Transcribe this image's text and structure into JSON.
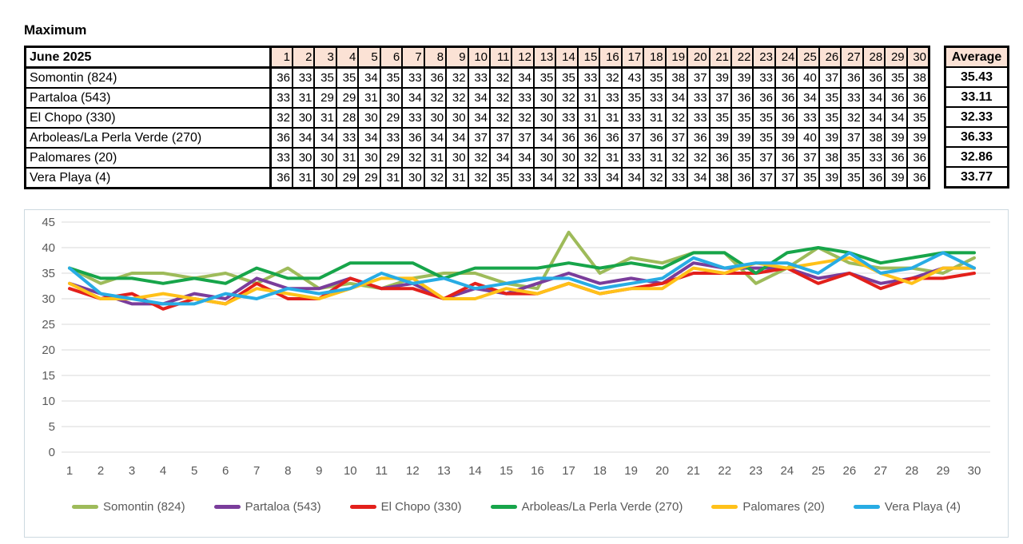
{
  "title": "Maximum",
  "table": {
    "month_label": "June 2025",
    "average_label": "Average",
    "header_bg": "#FBE2D5",
    "days": [
      1,
      2,
      3,
      4,
      5,
      6,
      7,
      8,
      9,
      10,
      11,
      12,
      13,
      14,
      15,
      16,
      17,
      18,
      19,
      20,
      21,
      22,
      23,
      24,
      25,
      26,
      27,
      28,
      29,
      30
    ],
    "rows": [
      {
        "label": "Somontin (824)",
        "values": [
          36,
          33,
          35,
          35,
          34,
          35,
          33,
          36,
          32,
          33,
          32,
          34,
          35,
          35,
          33,
          32,
          43,
          35,
          38,
          37,
          39,
          39,
          33,
          36,
          40,
          37,
          36,
          36,
          35,
          38
        ],
        "average": "35.43"
      },
      {
        "label": "Partaloa (543)",
        "values": [
          33,
          31,
          29,
          29,
          31,
          30,
          34,
          32,
          32,
          34,
          32,
          33,
          30,
          32,
          31,
          33,
          35,
          33,
          34,
          33,
          37,
          36,
          36,
          36,
          34,
          35,
          33,
          34,
          36,
          36
        ],
        "average": "33.11"
      },
      {
        "label": "El Chopo (330)",
        "values": [
          32,
          30,
          31,
          28,
          30,
          29,
          33,
          30,
          30,
          34,
          32,
          32,
          30,
          33,
          31,
          31,
          33,
          31,
          32,
          33,
          35,
          35,
          35,
          36,
          33,
          35,
          32,
          34,
          34,
          35
        ],
        "average": "32.33"
      },
      {
        "label": "Arboleas/La Perla Verde (270)",
        "values": [
          36,
          34,
          34,
          33,
          34,
          33,
          36,
          34,
          34,
          37,
          37,
          37,
          34,
          36,
          36,
          36,
          37,
          36,
          37,
          36,
          39,
          39,
          35,
          39,
          40,
          39,
          37,
          38,
          39,
          39
        ],
        "average": "36.33"
      },
      {
        "label": "Palomares (20)",
        "values": [
          33,
          30,
          30,
          31,
          30,
          29,
          32,
          31,
          30,
          32,
          34,
          34,
          30,
          30,
          32,
          31,
          33,
          31,
          32,
          32,
          36,
          35,
          37,
          36,
          37,
          38,
          35,
          33,
          36,
          36
        ],
        "average": "32.86"
      },
      {
        "label": "Vera Playa (4)",
        "values": [
          36,
          31,
          30,
          29,
          29,
          31,
          30,
          32,
          31,
          32,
          35,
          33,
          34,
          32,
          33,
          34,
          34,
          32,
          33,
          34,
          38,
          36,
          37,
          37,
          35,
          39,
          35,
          36,
          39,
          36
        ],
        "average": "33.77"
      }
    ]
  },
  "chart_data": {
    "type": "line",
    "x": [
      1,
      2,
      3,
      4,
      5,
      6,
      7,
      8,
      9,
      10,
      11,
      12,
      13,
      14,
      15,
      16,
      17,
      18,
      19,
      20,
      21,
      22,
      23,
      24,
      25,
      26,
      27,
      28,
      29,
      30
    ],
    "series": [
      {
        "name": "Somontin (824)",
        "color": "#9EBB5A",
        "values": [
          36,
          33,
          35,
          35,
          34,
          35,
          33,
          36,
          32,
          33,
          32,
          34,
          35,
          35,
          33,
          32,
          43,
          35,
          38,
          37,
          39,
          39,
          33,
          36,
          40,
          37,
          36,
          36,
          35,
          38
        ]
      },
      {
        "name": "Partaloa (543)",
        "color": "#7A3D9B",
        "values": [
          33,
          31,
          29,
          29,
          31,
          30,
          34,
          32,
          32,
          34,
          32,
          33,
          30,
          32,
          31,
          33,
          35,
          33,
          34,
          33,
          37,
          36,
          36,
          36,
          34,
          35,
          33,
          34,
          36,
          36
        ]
      },
      {
        "name": "El Chopo (330)",
        "color": "#E3201B",
        "values": [
          32,
          30,
          31,
          28,
          30,
          29,
          33,
          30,
          30,
          34,
          32,
          32,
          30,
          33,
          31,
          31,
          33,
          31,
          32,
          33,
          35,
          35,
          35,
          36,
          33,
          35,
          32,
          34,
          34,
          35
        ]
      },
      {
        "name": "Arboleas/La Perla Verde (270)",
        "color": "#17A54A",
        "values": [
          36,
          34,
          34,
          33,
          34,
          33,
          36,
          34,
          34,
          37,
          37,
          37,
          34,
          36,
          36,
          36,
          37,
          36,
          37,
          36,
          39,
          39,
          35,
          39,
          40,
          39,
          37,
          38,
          39,
          39
        ]
      },
      {
        "name": "Palomares (20)",
        "color": "#FFC119",
        "values": [
          33,
          30,
          30,
          31,
          30,
          29,
          32,
          31,
          30,
          32,
          34,
          34,
          30,
          30,
          32,
          31,
          33,
          31,
          32,
          32,
          36,
          35,
          37,
          36,
          37,
          38,
          35,
          33,
          36,
          36
        ]
      },
      {
        "name": "Vera Playa (4)",
        "color": "#28ACE4",
        "values": [
          36,
          31,
          30,
          29,
          29,
          31,
          30,
          32,
          31,
          32,
          35,
          33,
          34,
          32,
          33,
          34,
          34,
          32,
          33,
          34,
          38,
          36,
          37,
          37,
          35,
          39,
          35,
          36,
          39,
          36
        ]
      }
    ],
    "yticks": [
      0,
      5,
      10,
      15,
      20,
      25,
      30,
      35,
      40,
      45
    ],
    "ylim": [
      0,
      45
    ],
    "grid": true,
    "legend_position": "bottom",
    "grid_color": "#D9D9D9",
    "axis_text_color": "#595959"
  }
}
